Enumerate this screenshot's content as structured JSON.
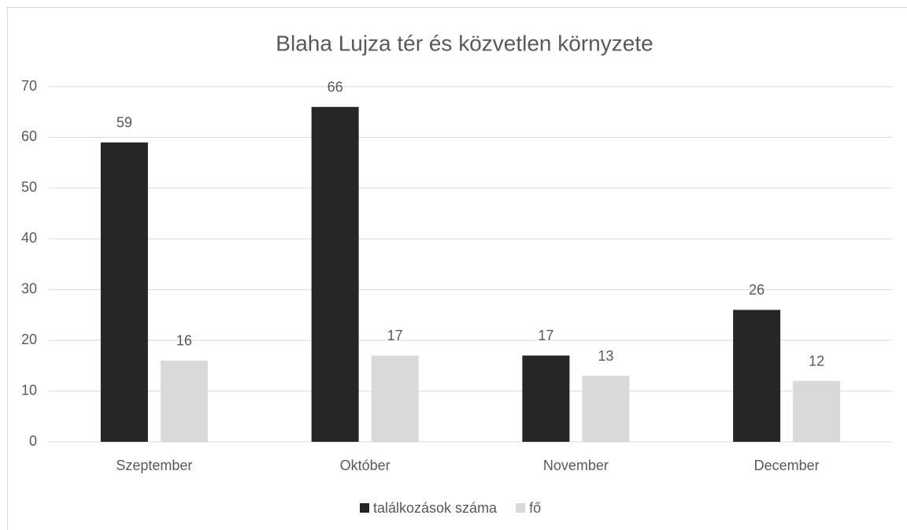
{
  "chart_data": {
    "type": "bar",
    "title": "Blaha Lujza tér és közvetlen környzete",
    "categories": [
      "Szeptember",
      "Október",
      "November",
      "December"
    ],
    "series": [
      {
        "name": "találkozások száma",
        "color": "#262626",
        "values": [
          59,
          66,
          17,
          26
        ]
      },
      {
        "name": "fő",
        "color": "#d9d9d9",
        "values": [
          16,
          17,
          13,
          12
        ]
      }
    ],
    "ylim": [
      0,
      70
    ],
    "yticks": [
      0,
      10,
      20,
      30,
      40,
      50,
      60,
      70
    ],
    "grid": true,
    "legend": "bottom"
  }
}
